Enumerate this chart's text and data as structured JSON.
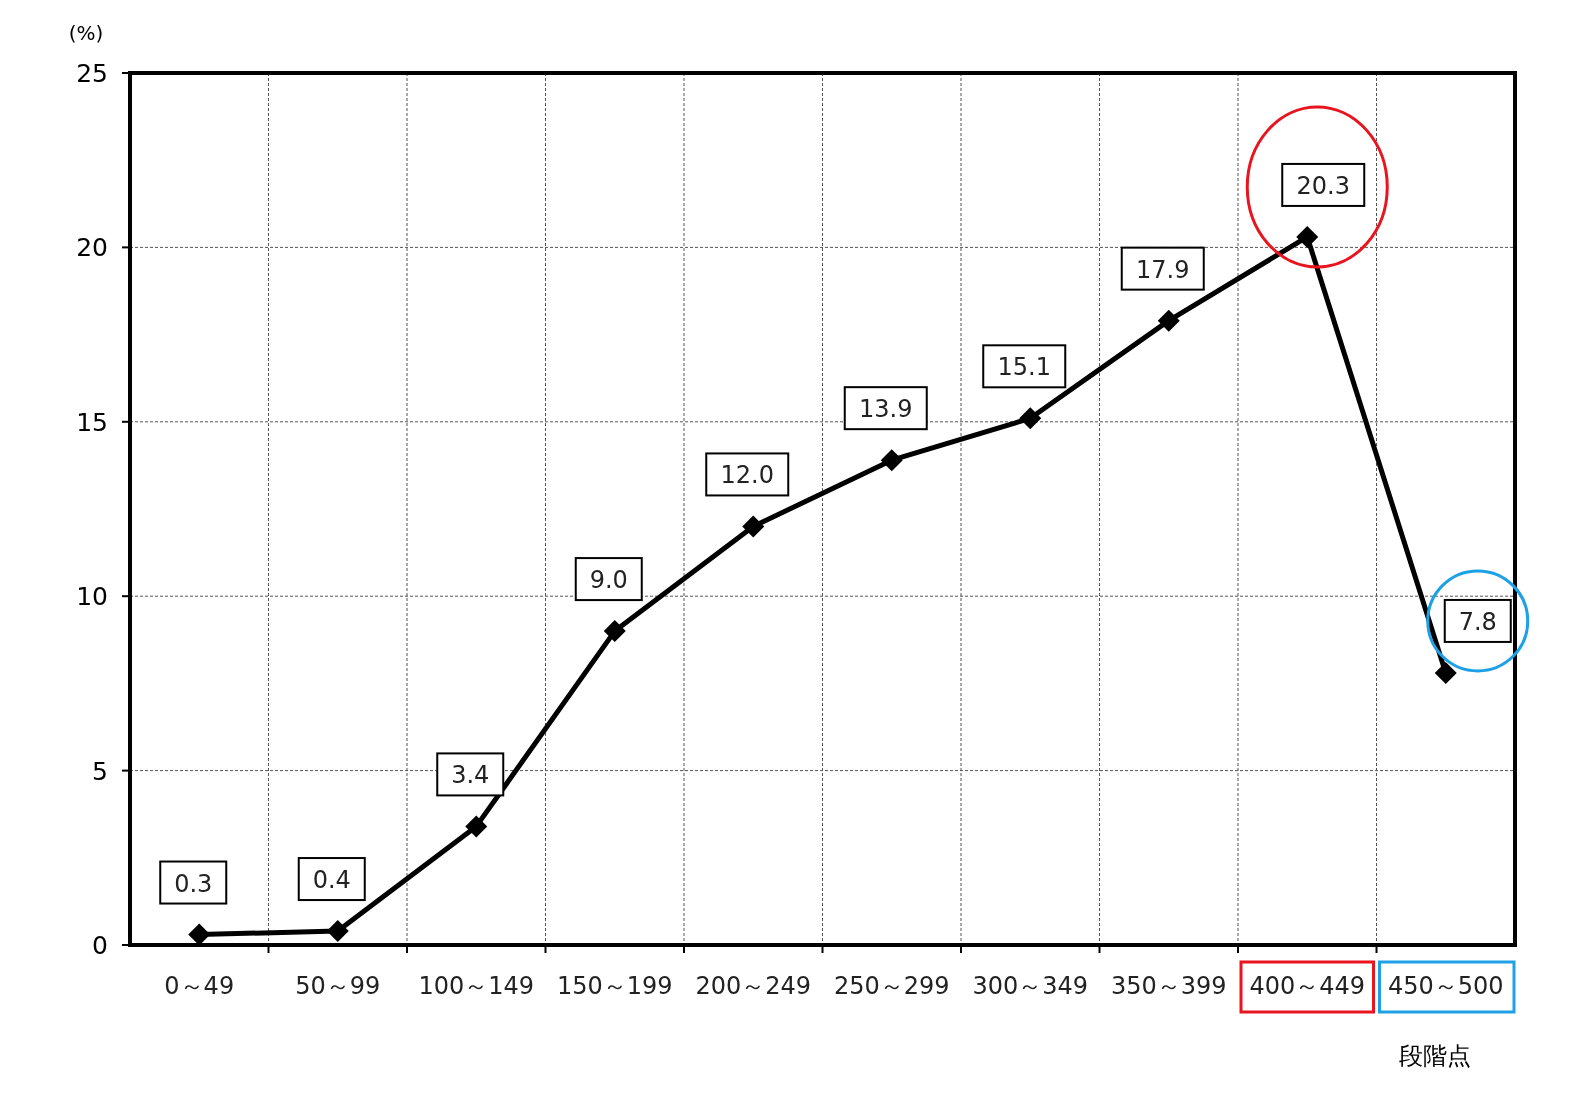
{
  "chart_data": {
    "type": "line",
    "ylabel": "(%)",
    "xlabel": "段階点",
    "categories": [
      "0～49",
      "50～99",
      "100～149",
      "150～199",
      "200～249",
      "250～299",
      "300～349",
      "350～399",
      "400～449",
      "450～500"
    ],
    "values": [
      0.3,
      0.4,
      3.4,
      9.0,
      12.0,
      13.9,
      15.1,
      17.9,
      20.3,
      7.8
    ],
    "value_labels": [
      "0.3",
      "0.4",
      "3.4",
      "9.0",
      "12.0",
      "13.9",
      "15.1",
      "17.9",
      "20.3",
      "7.8"
    ],
    "color": "#000000",
    "ylim": [
      0,
      25
    ],
    "yticks": [
      0,
      5,
      10,
      15,
      20,
      25
    ],
    "grid": true,
    "marker": "diamond",
    "line_style": "solid"
  }
}
